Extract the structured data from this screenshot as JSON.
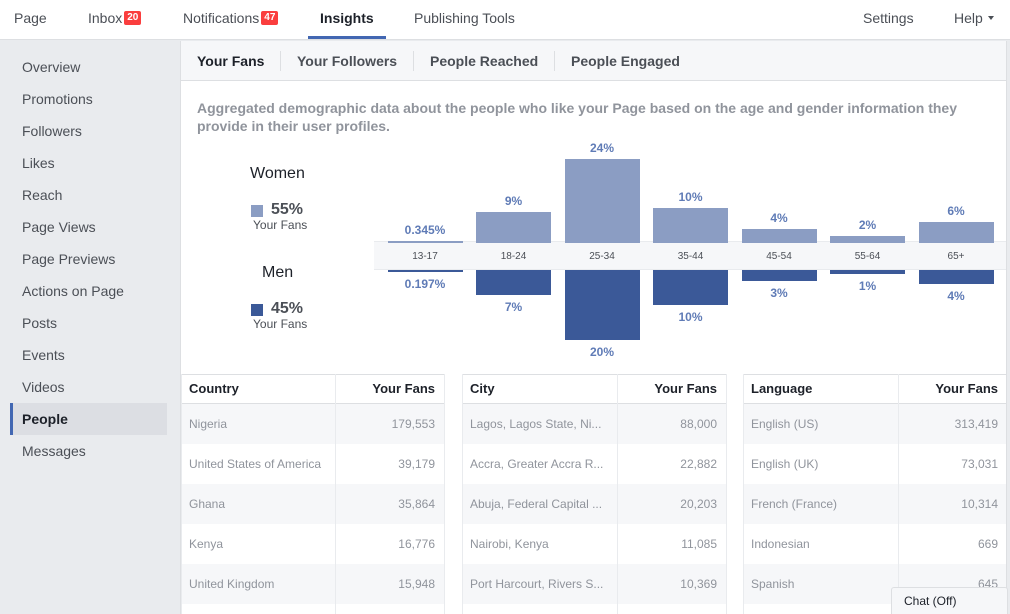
{
  "topnav": {
    "page": "Page",
    "inbox": "Inbox",
    "inbox_count": "20",
    "notifications": "Notifications",
    "notifications_count": "47",
    "insights": "Insights",
    "publishing_tools": "Publishing Tools",
    "settings": "Settings",
    "help": "Help"
  },
  "sidebar": {
    "items": [
      {
        "label": "Overview"
      },
      {
        "label": "Promotions"
      },
      {
        "label": "Followers"
      },
      {
        "label": "Likes"
      },
      {
        "label": "Reach"
      },
      {
        "label": "Page Views"
      },
      {
        "label": "Page Previews"
      },
      {
        "label": "Actions on Page"
      },
      {
        "label": "Posts"
      },
      {
        "label": "Events"
      },
      {
        "label": "Videos"
      },
      {
        "label": "People"
      },
      {
        "label": "Messages"
      }
    ],
    "active": "People"
  },
  "subtabs": [
    "Your Fans",
    "Your Followers",
    "People Reached",
    "People Engaged"
  ],
  "description": "Aggregated demographic data about the people who like your Page based on the age and gender information they provide in their user profiles.",
  "legend": {
    "women_title": "Women",
    "women_pct": "55%",
    "women_sub": "Your Fans",
    "men_title": "Men",
    "men_pct": "45%",
    "men_sub": "Your Fans"
  },
  "colors": {
    "women": "#8b9dc3",
    "men": "#3b5998",
    "accent": "#4267b2",
    "badge": "#fa3e3e"
  },
  "chart_data": {
    "type": "bar",
    "categories": [
      "13-17",
      "18-24",
      "25-34",
      "35-44",
      "45-54",
      "55-64",
      "65+"
    ],
    "series": [
      {
        "name": "Women",
        "values": [
          0.345,
          9,
          24,
          10,
          4,
          2,
          6
        ],
        "labels": [
          "0.345%",
          "9%",
          "24%",
          "10%",
          "4%",
          "2%",
          "6%"
        ]
      },
      {
        "name": "Men",
        "values": [
          0.197,
          7,
          20,
          10,
          3,
          1,
          4
        ],
        "labels": [
          "0.197%",
          "7%",
          "20%",
          "10%",
          "3%",
          "1%",
          "4%"
        ]
      }
    ]
  },
  "tables": {
    "country": {
      "headers": [
        "Country",
        "Your Fans"
      ],
      "rows": [
        [
          "Nigeria",
          "179,553"
        ],
        [
          "United States of America",
          "39,179"
        ],
        [
          "Ghana",
          "35,864"
        ],
        [
          "Kenya",
          "16,776"
        ],
        [
          "United Kingdom",
          "15,948"
        ]
      ]
    },
    "city": {
      "headers": [
        "City",
        "Your Fans"
      ],
      "rows": [
        [
          "Lagos, Lagos State, Ni...",
          "88,000"
        ],
        [
          "Accra, Greater Accra R...",
          "22,882"
        ],
        [
          "Abuja, Federal Capital ...",
          "20,203"
        ],
        [
          "Nairobi, Kenya",
          "11,085"
        ],
        [
          "Port Harcourt, Rivers S...",
          "10,369"
        ]
      ]
    },
    "language": {
      "headers": [
        "Language",
        "Your Fans"
      ],
      "rows": [
        [
          "English (US)",
          "313,419"
        ],
        [
          "English (UK)",
          "73,031"
        ],
        [
          "French (France)",
          "10,314"
        ],
        [
          "Indonesian",
          "669"
        ],
        [
          "Spanish",
          "645"
        ]
      ]
    }
  },
  "chat": "Chat (Off)"
}
